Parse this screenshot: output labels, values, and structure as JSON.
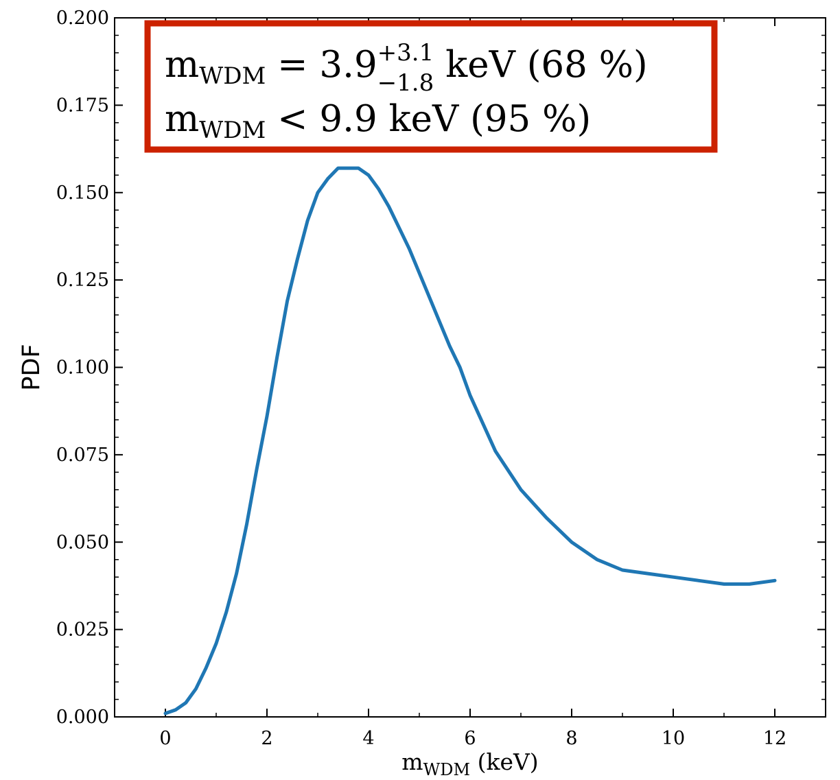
{
  "chart_data": {
    "type": "line",
    "xlabel": {
      "main": "m",
      "sub": "WDM",
      "rest": " (keV)"
    },
    "ylabel": "PDF",
    "xlim": [
      -1,
      13
    ],
    "ylim": [
      0,
      0.2
    ],
    "xticks": [
      0,
      2,
      4,
      6,
      8,
      10,
      12
    ],
    "xtick_labels": [
      "0",
      "2",
      "4",
      "6",
      "8",
      "10",
      "12"
    ],
    "yticks": [
      0,
      0.025,
      0.05,
      0.075,
      0.1,
      0.125,
      0.15,
      0.175,
      0.2
    ],
    "ytick_labels": [
      "0.000",
      "0.025",
      "0.050",
      "0.075",
      "0.100",
      "0.125",
      "0.150",
      "0.175",
      "0.200"
    ],
    "grid": false,
    "series": [
      {
        "color": "#1f77b4",
        "x": [
          0,
          0.2,
          0.4,
          0.6,
          0.8,
          1.0,
          1.2,
          1.4,
          1.6,
          1.8,
          2.0,
          2.2,
          2.4,
          2.6,
          2.8,
          3.0,
          3.2,
          3.4,
          3.6,
          3.8,
          4.0,
          4.2,
          4.4,
          4.6,
          4.8,
          5.0,
          5.2,
          5.4,
          5.6,
          5.8,
          6.0,
          6.5,
          7.0,
          7.5,
          8.0,
          8.5,
          9.0,
          9.5,
          10.0,
          10.5,
          11.0,
          11.5,
          12.0
        ],
        "y": [
          0.001,
          0.002,
          0.004,
          0.008,
          0.014,
          0.021,
          0.03,
          0.041,
          0.055,
          0.071,
          0.086,
          0.103,
          0.119,
          0.131,
          0.142,
          0.15,
          0.154,
          0.157,
          0.157,
          0.157,
          0.155,
          0.151,
          0.146,
          0.14,
          0.134,
          0.127,
          0.12,
          0.113,
          0.106,
          0.1,
          0.092,
          0.076,
          0.065,
          0.057,
          0.05,
          0.045,
          0.042,
          0.041,
          0.04,
          0.039,
          0.038,
          0.038,
          0.039
        ]
      }
    ],
    "annotation": {
      "border_color": "#cc2200",
      "line1": {
        "m": "m",
        "sub": "WDM",
        "eq": " = 3.9",
        "sup": "+3.1",
        "lower": "−1.8",
        "rest": " keV (68 %)"
      },
      "line2": {
        "m": "m",
        "sub": "WDM",
        "rest": " < 9.9 keV (95 %)"
      }
    }
  }
}
